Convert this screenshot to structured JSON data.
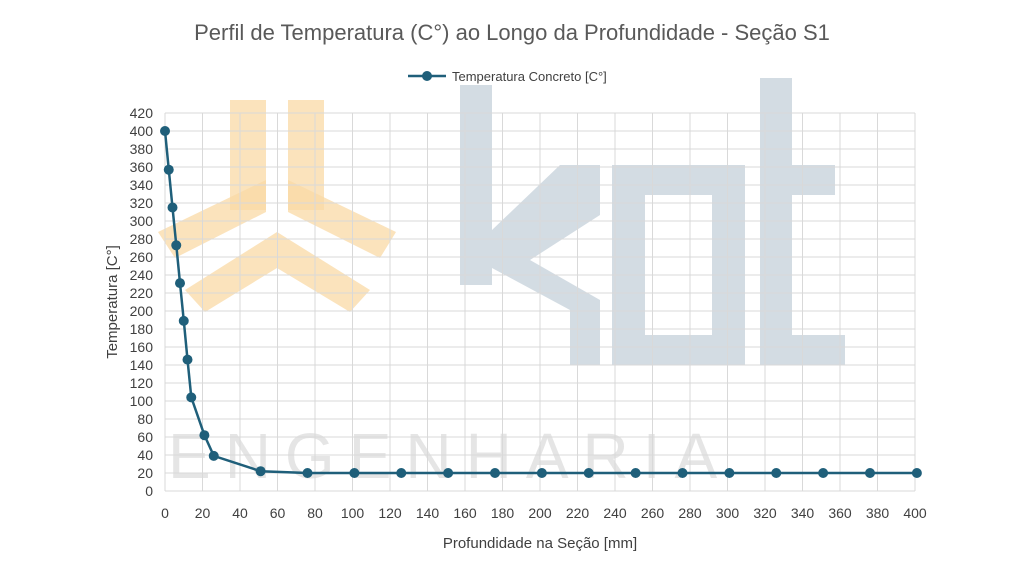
{
  "chart_data": {
    "type": "line",
    "title": "Perfil de Temperatura (C°) ao Longo da Profundidade - Seção S1",
    "xlabel": "Profundidade na Seção [mm]",
    "ylabel": "Temperatura   [C°]",
    "xlim": [
      0,
      400
    ],
    "ylim": [
      0,
      420
    ],
    "x_ticks": [
      0,
      20,
      40,
      60,
      80,
      100,
      120,
      140,
      160,
      180,
      200,
      220,
      240,
      260,
      280,
      300,
      320,
      340,
      360,
      380,
      400
    ],
    "y_ticks": [
      0,
      20,
      40,
      60,
      80,
      100,
      120,
      140,
      160,
      180,
      200,
      220,
      240,
      260,
      280,
      300,
      320,
      340,
      360,
      380,
      400,
      420
    ],
    "grid": true,
    "legend_position": "top-center",
    "series": [
      {
        "name": "Temperatura Concreto [C°]",
        "color": "#1f5f7a",
        "x": [
          0,
          2,
          4,
          6,
          8,
          10,
          12,
          14,
          21,
          26,
          51,
          76,
          101,
          126,
          151,
          176,
          201,
          226,
          251,
          276,
          301,
          326,
          351,
          376,
          401
        ],
        "y": [
          400,
          357,
          315,
          273,
          231,
          189,
          146,
          104,
          62,
          39,
          22,
          20,
          20,
          20,
          20,
          20,
          20,
          20,
          20,
          20,
          20,
          20,
          20,
          20,
          20
        ]
      }
    ]
  },
  "watermark": {
    "text": "ENGENHARIA",
    "logo_colors": [
      "#f9d9a6",
      "#aebfcc"
    ]
  }
}
